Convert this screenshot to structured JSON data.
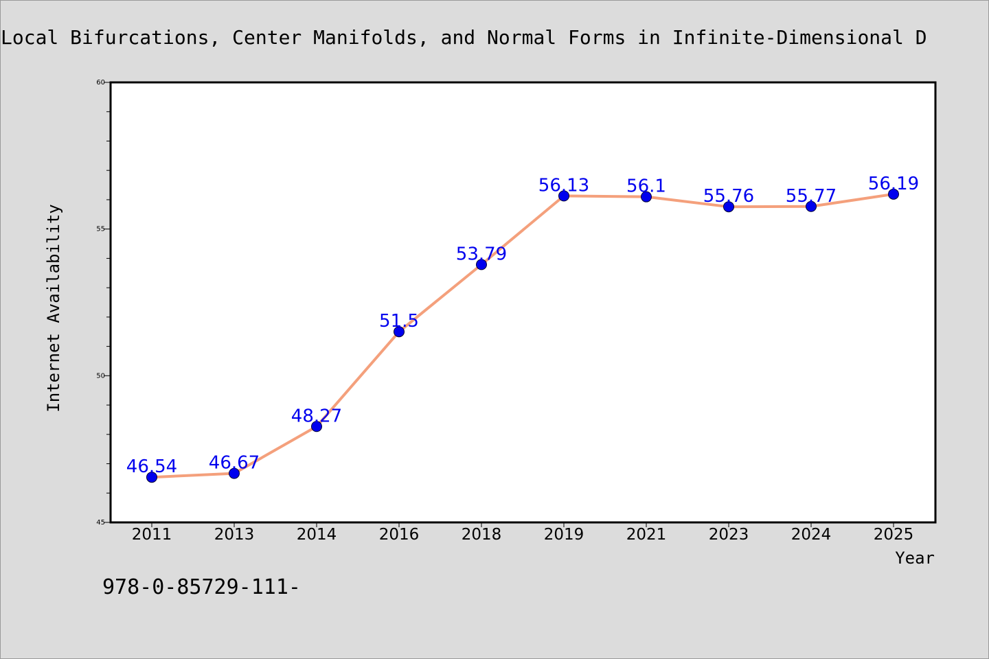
{
  "chart_data": {
    "type": "line",
    "title": "Local Bifurcations, Center Manifolds, and Normal Forms in Infinite-Dimensional D",
    "xlabel": "Year",
    "ylabel": "Internet Availability",
    "categories": [
      "2011",
      "2013",
      "2014",
      "2016",
      "2018",
      "2019",
      "2021",
      "2023",
      "2024",
      "2025"
    ],
    "series": [
      {
        "values": [
          46.54,
          46.67,
          48.27,
          51.5,
          53.79,
          56.13,
          56.1,
          55.76,
          55.77,
          56.19
        ],
        "labels": [
          "46.54",
          "46.67",
          "48.27",
          "51.5",
          "53.79",
          "56.13",
          "56.1",
          "55.76",
          "55.77",
          "56.19"
        ]
      }
    ],
    "ylim": [
      45,
      60
    ],
    "yticks": [
      "45",
      "50",
      "55",
      "60"
    ],
    "grid": false,
    "legend": "none",
    "colors": {
      "line": "#f4a07c",
      "marker": "#0000ee",
      "label": "#0000ee",
      "background": "#dcdcdc",
      "plot_background": "#ffffff"
    }
  },
  "footer": {
    "text": "978-0-85729-111-"
  }
}
